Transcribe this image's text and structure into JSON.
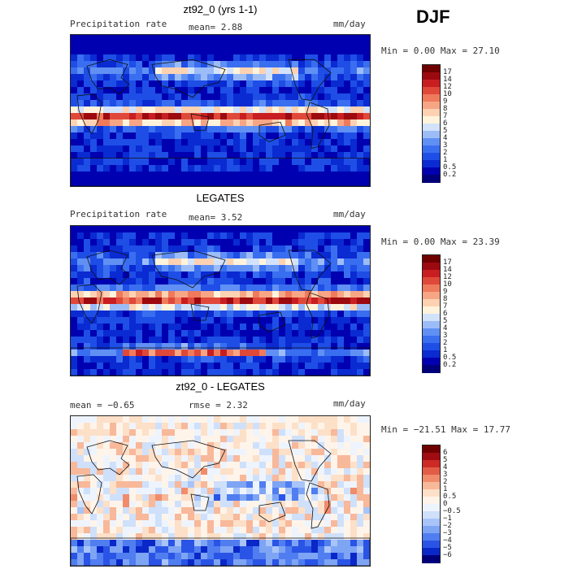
{
  "season": "DJF",
  "panels": [
    {
      "id": "model",
      "title": "zt92_0 (yrs 1-1)",
      "left_label": "Precipitation rate",
      "center_label": "mean=    2.88",
      "right_label": "mm/day",
      "minmax": "Min =    0.00 Max =  27.10",
      "palette": "precip",
      "levels": [
        "17",
        "14",
        "12",
        "10",
        "9",
        "8",
        "7",
        "6",
        "5",
        "4",
        "3",
        "2",
        "1",
        "0.5",
        "0.2"
      ]
    },
    {
      "id": "obs",
      "title": "LEGATES",
      "left_label": "Precipitation rate",
      "center_label": "mean=    3.52",
      "right_label": "mm/day",
      "minmax": "Min =    0.00 Max =  23.39",
      "palette": "precip",
      "levels": [
        "17",
        "14",
        "12",
        "10",
        "9",
        "8",
        "7",
        "6",
        "5",
        "4",
        "3",
        "2",
        "1",
        "0.5",
        "0.2"
      ]
    },
    {
      "id": "diff",
      "title": "zt92_0 - LEGATES",
      "left_label": "mean =   −0.65",
      "center_label": "rmse =    2.32",
      "right_label": "mm/day",
      "minmax": "Min = −21.51 Max =  17.77",
      "palette": "diff",
      "levels": [
        "6",
        "5",
        "4",
        "3",
        "2",
        "1",
        "0.5",
        "0",
        "−0.5",
        "−1",
        "−2",
        "−3",
        "−4",
        "−5",
        "−6"
      ]
    }
  ],
  "colors": {
    "precip": [
      "#00007a",
      "#0000b0",
      "#0a2ad2",
      "#1e4ee6",
      "#3a6ef0",
      "#6090f4",
      "#9cbcf8",
      "#d2e2fb",
      "#fff3dc",
      "#fcd2b2",
      "#f7a685",
      "#ef7a5c",
      "#e0483a",
      "#c81e22",
      "#9c0a10",
      "#6e0000"
    ],
    "diff": [
      "#00007a",
      "#0a28c8",
      "#2a54e6",
      "#507ef0",
      "#7ea4f4",
      "#a8c4f8",
      "#cfe0fb",
      "#eef4fd",
      "#fff4ea",
      "#fde0c8",
      "#f8b89a",
      "#f08c6c",
      "#e25c46",
      "#cc2a26",
      "#a00c12",
      "#700000"
    ]
  },
  "chart_data": [
    {
      "type": "heatmap",
      "title": "zt92_0 (yrs 1-1)",
      "variable": "Precipitation rate",
      "units": "mm/day",
      "mean": 2.88,
      "min": 0.0,
      "max": 27.1,
      "colorbar_levels": [
        0.2,
        0.5,
        1,
        2,
        3,
        4,
        5,
        6,
        7,
        8,
        9,
        10,
        12,
        14,
        17
      ]
    },
    {
      "type": "heatmap",
      "title": "LEGATES",
      "variable": "Precipitation rate",
      "units": "mm/day",
      "mean": 3.52,
      "min": 0.0,
      "max": 23.39,
      "colorbar_levels": [
        0.2,
        0.5,
        1,
        2,
        3,
        4,
        5,
        6,
        7,
        8,
        9,
        10,
        12,
        14,
        17
      ]
    },
    {
      "type": "heatmap",
      "title": "zt92_0 - LEGATES",
      "units": "mm/day",
      "mean": -0.65,
      "rmse": 2.32,
      "min": -21.51,
      "max": 17.77,
      "colorbar_levels": [
        -6,
        -5,
        -4,
        -3,
        -2,
        -1,
        -0.5,
        0,
        0.5,
        1,
        2,
        3,
        4,
        5,
        6
      ]
    }
  ]
}
